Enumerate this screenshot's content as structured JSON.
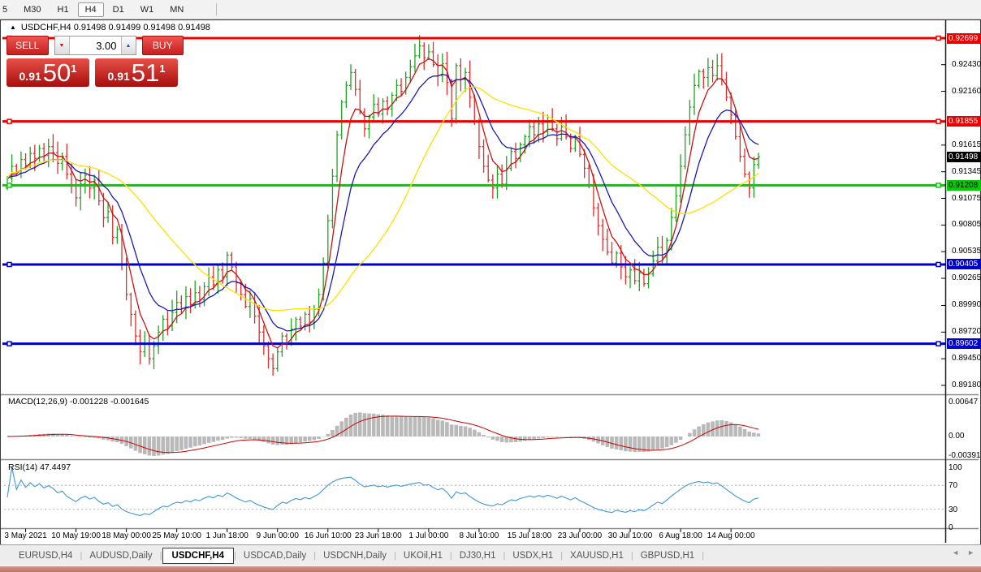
{
  "toolbar": {
    "timeframes": [
      {
        "label": "5",
        "active": false
      },
      {
        "label": "M30",
        "active": false
      },
      {
        "label": "H1",
        "active": false
      },
      {
        "label": "H4",
        "active": true
      },
      {
        "label": "D1",
        "active": false
      },
      {
        "label": "W1",
        "active": false
      },
      {
        "label": "MN",
        "active": false
      }
    ]
  },
  "chart": {
    "collapse_icon": "▲",
    "title": "USDCHF,H4  0.91498 0.91499 0.91498 0.91498"
  },
  "trade_panel": {
    "sell_label": "SELL",
    "buy_label": "BUY",
    "volume": "3.00",
    "down_arrow": "▼",
    "up_arrow": "▲",
    "sell_price": {
      "prefix": "0.91",
      "big": "50",
      "sup": "1"
    },
    "buy_price": {
      "prefix": "0.91",
      "big": "51",
      "sup": "1"
    }
  },
  "price_axis": {
    "ticks": [
      "0.92430",
      "0.92160",
      "0.91615",
      "0.91345",
      "0.91075",
      "0.90805",
      "0.90535",
      "0.90265",
      "0.89990",
      "0.89720",
      "0.89450",
      "0.89180"
    ],
    "badges": [
      {
        "value": "0.92699",
        "bg": "#ee0000",
        "fg": "#ffffff"
      },
      {
        "value": "0.91855",
        "bg": "#ee0000",
        "fg": "#ffffff"
      },
      {
        "value": "0.91498",
        "bg": "#000000",
        "fg": "#ffffff"
      },
      {
        "value": "0.91208",
        "bg": "#00cc00",
        "fg": "#000000"
      },
      {
        "value": "0.90405",
        "bg": "#0000cc",
        "fg": "#ffffff"
      },
      {
        "value": "0.89602",
        "bg": "#0000cc",
        "fg": "#ffffff"
      }
    ]
  },
  "macd": {
    "label": "MACD(12,26,9) -0.001228 -0.001645",
    "axis": [
      "0.00647",
      "0.00",
      "-0.003916"
    ]
  },
  "rsi": {
    "label": "RSI(14) 47.4497",
    "axis": [
      "100",
      "70",
      "30",
      "0"
    ]
  },
  "chart_data": {
    "type": "candlestick",
    "symbol": "USDCHF",
    "timeframe": "H4",
    "last_price": 0.91498,
    "up_color": "#1fa51f",
    "down_color": "#dd2f2f",
    "x_labels": [
      "3 May 2021",
      "10 May 19:00",
      "18 May 00:00",
      "25 May 10:00",
      "1 Jun 18:00",
      "9 Jun 00:00",
      "16 Jun 10:00",
      "23 Jun 18:00",
      "1 Jul 00:00",
      "8 Jul 10:00",
      "15 Jul 18:00",
      "23 Jul 00:00",
      "30 Jul 10:00",
      "6 Aug 18:00",
      "14 Aug 00:00"
    ],
    "x_label_indices": [
      4,
      15,
      26,
      37,
      48,
      59,
      70,
      81,
      92,
      103,
      114,
      125,
      136,
      147,
      158
    ],
    "closes": [
      0.9128,
      0.914,
      0.9133,
      0.9147,
      0.9141,
      0.9153,
      0.9148,
      0.9158,
      0.9151,
      0.916,
      0.9154,
      0.9143,
      0.915,
      0.9132,
      0.912,
      0.9108,
      0.9122,
      0.9131,
      0.9118,
      0.9126,
      0.9105,
      0.9088,
      0.9094,
      0.9068,
      0.9076,
      0.904,
      0.901,
      0.899,
      0.8968,
      0.8952,
      0.896,
      0.8945,
      0.8958,
      0.8972,
      0.8985,
      0.8978,
      0.8992,
      0.9002,
      0.8996,
      0.9008,
      0.9,
      0.9012,
      0.9005,
      0.9018,
      0.9028,
      0.902,
      0.9035,
      0.9028,
      0.905,
      0.9038,
      0.9022,
      0.901,
      0.8998,
      0.9006,
      0.8988,
      0.8972,
      0.8958,
      0.8945,
      0.8935,
      0.8952,
      0.8968,
      0.896,
      0.8975,
      0.8985,
      0.8978,
      0.899,
      0.8982,
      0.8995,
      0.901,
      0.9042,
      0.9085,
      0.913,
      0.9172,
      0.9205,
      0.9222,
      0.9235,
      0.9218,
      0.9195,
      0.9178,
      0.919,
      0.9203,
      0.9193,
      0.9206,
      0.9198,
      0.9212,
      0.9222,
      0.9216,
      0.923,
      0.9241,
      0.9252,
      0.9262,
      0.925,
      0.9256,
      0.9243,
      0.9232,
      0.9244,
      0.9225,
      0.9188,
      0.9242,
      0.9228,
      0.9235,
      0.921,
      0.9185,
      0.916,
      0.914,
      0.9126,
      0.9118,
      0.9132,
      0.9122,
      0.9138,
      0.9155,
      0.9148,
      0.9162,
      0.917,
      0.918,
      0.9172,
      0.9183,
      0.9175,
      0.9186,
      0.9178,
      0.9168,
      0.918,
      0.917,
      0.9158,
      0.917,
      0.9152,
      0.9138,
      0.912,
      0.9098,
      0.908,
      0.9066,
      0.9053,
      0.9042,
      0.9052,
      0.9038,
      0.9028,
      0.9035,
      0.9024,
      0.9032,
      0.9021,
      0.9031,
      0.9044,
      0.9058,
      0.9048,
      0.9065,
      0.9088,
      0.911,
      0.914,
      0.9172,
      0.92,
      0.9222,
      0.9236,
      0.923,
      0.924,
      0.9232,
      0.9242,
      0.9228,
      0.921,
      0.9192,
      0.917,
      0.915,
      0.9132,
      0.9118,
      0.9142,
      0.91498
    ],
    "horizontal_lines": [
      {
        "price": 0.92699,
        "color": "#ee0000"
      },
      {
        "price": 0.91855,
        "color": "#ee0000"
      },
      {
        "price": 0.91208,
        "color": "#00cc00"
      },
      {
        "price": 0.90405,
        "color": "#0000cc"
      },
      {
        "price": 0.89602,
        "color": "#0000cc"
      }
    ],
    "moving_averages": [
      {
        "period": 5,
        "type": "ema",
        "color": "#cc1111"
      },
      {
        "period": 12,
        "type": "ema",
        "color": "#1a1aae"
      },
      {
        "period": 30,
        "type": "sma",
        "color": "#ffdf00"
      }
    ],
    "indicators": {
      "macd": {
        "fast": 12,
        "slow": 26,
        "signal": 9
      },
      "rsi": {
        "period": 14
      }
    }
  },
  "tabs": {
    "scroll_left": "◄",
    "scroll_right": "►",
    "items": [
      {
        "label": "EURUSD,H4",
        "active": false
      },
      {
        "label": "AUDUSD,Daily",
        "active": false
      },
      {
        "label": "USDCHF,H4",
        "active": true
      },
      {
        "label": "USDCAD,Daily",
        "active": false
      },
      {
        "label": "USDCNH,Daily",
        "active": false
      },
      {
        "label": "UKOil,H1",
        "active": false
      },
      {
        "label": "DJ30,H1",
        "active": false
      },
      {
        "label": "USDX,H1",
        "active": false
      },
      {
        "label": "XAUUSD,H1",
        "active": false
      },
      {
        "label": "GBPUSD,H1",
        "active": false
      }
    ]
  }
}
